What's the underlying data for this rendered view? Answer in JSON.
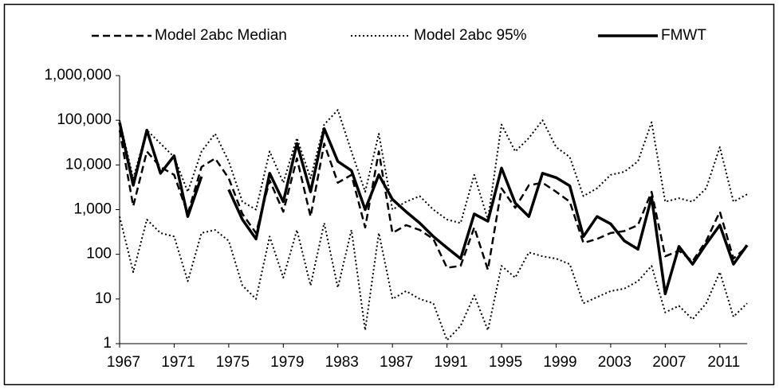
{
  "chart_data": {
    "type": "line",
    "x": [
      1967,
      1968,
      1969,
      1970,
      1971,
      1972,
      1973,
      1974,
      1975,
      1976,
      1977,
      1978,
      1979,
      1980,
      1981,
      1982,
      1983,
      1984,
      1985,
      1986,
      1987,
      1988,
      1989,
      1990,
      1991,
      1992,
      1993,
      1994,
      1995,
      1996,
      1997,
      1998,
      1999,
      2000,
      2001,
      2002,
      2003,
      2004,
      2005,
      2006,
      2007,
      2008,
      2009,
      2010,
      2011,
      2012,
      2013
    ],
    "xlim": [
      1967,
      2013
    ],
    "xticks": [
      1967,
      1971,
      1975,
      1979,
      1983,
      1987,
      1991,
      1995,
      1999,
      2003,
      2007,
      2011
    ],
    "ylim": [
      1,
      1000000
    ],
    "log_y": true,
    "yticks": [
      1,
      10,
      100,
      {
        "value": 1000,
        "label": "1,000"
      },
      {
        "value": 10000,
        "label": "10,000"
      },
      {
        "value": 100000,
        "label": "100,000"
      },
      {
        "value": 1000000,
        "label": "1,000,000"
      }
    ],
    "legend": "top",
    "series": [
      {
        "name": "Model 2abc Median",
        "color": "#000000",
        "style": "dashed",
        "values": [
          60000,
          1200,
          20000,
          9000,
          6000,
          800,
          9000,
          14000,
          5000,
          800,
          300,
          4500,
          900,
          14000,
          700,
          30000,
          4000,
          6000,
          400,
          20000,
          300,
          450,
          350,
          220,
          50,
          55,
          400,
          45,
          3000,
          1100,
          3500,
          4000,
          2500,
          1500,
          180,
          220,
          300,
          330,
          450,
          2500,
          90,
          120,
          70,
          200,
          900,
          80,
          150
        ]
      },
      {
        "name": "Model 2abc 95%",
        "color": "#000000",
        "style": "dotted",
        "lower": [
          700,
          40,
          600,
          300,
          250,
          25,
          300,
          350,
          200,
          20,
          10,
          250,
          30,
          350,
          20,
          500,
          18,
          350,
          2,
          300,
          10,
          15,
          10,
          8,
          1.2,
          2.5,
          12,
          2,
          55,
          30,
          110,
          90,
          80,
          60,
          8,
          11,
          15,
          17,
          25,
          55,
          5,
          7,
          3.5,
          8,
          40,
          4,
          8
        ],
        "upper": [
          100000,
          5000,
          60000,
          30000,
          15000,
          2500,
          20000,
          50000,
          12000,
          1500,
          1000,
          20000,
          4000,
          40000,
          5000,
          80000,
          170000,
          20000,
          2500,
          50000,
          1000,
          1500,
          2000,
          1000,
          600,
          500,
          6000,
          600,
          80000,
          20000,
          40000,
          100000,
          25000,
          15000,
          2000,
          3000,
          6000,
          7000,
          12000,
          90000,
          1500,
          1800,
          1500,
          3000,
          25000,
          1500,
          2200
        ]
      },
      {
        "name": "FMWT",
        "color": "#000000",
        "style": "solid",
        "values": [
          90000,
          3500,
          60000,
          6500,
          16000,
          700,
          5500,
          null,
          2800,
          600,
          220,
          6500,
          1500,
          30000,
          2500,
          65000,
          12000,
          7500,
          1000,
          6000,
          1700,
          900,
          500,
          250,
          140,
          80,
          800,
          550,
          8500,
          1400,
          700,
          6500,
          5200,
          3400,
          250,
          700,
          480,
          200,
          130,
          1900,
          13,
          150,
          60,
          170,
          450,
          60,
          160
        ]
      }
    ]
  }
}
